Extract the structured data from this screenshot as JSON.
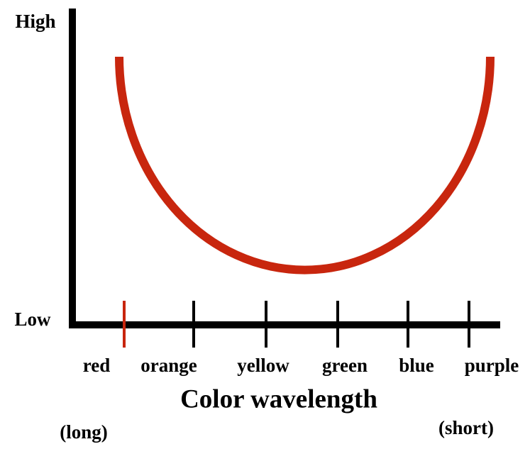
{
  "y_axis": {
    "high": "High",
    "low": "Low"
  },
  "x_axis": {
    "title": "Color wavelength",
    "categories": [
      "red",
      "orange",
      "yellow",
      "green",
      "blue",
      "purple"
    ],
    "left_end": "(long)",
    "right_end": "(short)"
  }
}
